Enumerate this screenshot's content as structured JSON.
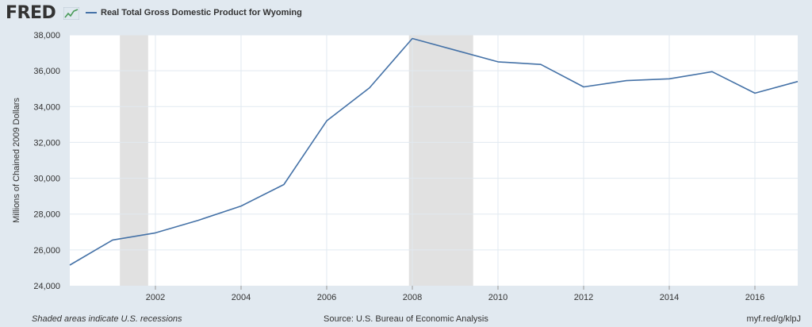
{
  "header": {
    "logo": "FRED",
    "logo_icon": "chart-line-icon"
  },
  "footer": {
    "note": "Shaded areas indicate U.S. recessions",
    "source": "Source: U.S. Bureau of Economic Analysis",
    "link": "myf.red/g/klpJ"
  },
  "colors": {
    "background": "#e1e9f0",
    "plot": "#ffffff",
    "series": "#4572a7",
    "recession": "#e1e1e1",
    "grid": "#e1e9f0"
  },
  "chart_data": {
    "type": "line",
    "title": "",
    "xlabel": "",
    "ylabel": "Millions of Chained 2009 Dollars",
    "xlim": [
      2000,
      2017
    ],
    "ylim": [
      24000,
      38000
    ],
    "xticks": [
      2002,
      2004,
      2006,
      2008,
      2010,
      2012,
      2014,
      2016
    ],
    "xtick_labels": [
      "2002",
      "2004",
      "2006",
      "2008",
      "2010",
      "2012",
      "2014",
      "2016"
    ],
    "yticks": [
      24000,
      26000,
      28000,
      30000,
      32000,
      34000,
      36000,
      38000
    ],
    "ytick_labels": [
      "24,000",
      "26,000",
      "28,000",
      "30,000",
      "32,000",
      "34,000",
      "36,000",
      "38,000"
    ],
    "grid": true,
    "legend_position": "top-left",
    "series": [
      {
        "name": "Real Total Gross Domestic Product for Wyoming",
        "x": [
          2000,
          2001,
          2002,
          2003,
          2004,
          2005,
          2006,
          2007,
          2008,
          2009,
          2010,
          2011,
          2012,
          2013,
          2014,
          2015,
          2016,
          2017
        ],
        "values": [
          25150,
          26550,
          26950,
          27650,
          28450,
          29650,
          33200,
          35050,
          37800,
          37150,
          36500,
          36350,
          35100,
          35450,
          35550,
          35950,
          34750,
          35400
        ]
      }
    ],
    "recessions": [
      {
        "start": 2001.17,
        "end": 2001.83
      },
      {
        "start": 2007.92,
        "end": 2009.42
      }
    ]
  }
}
